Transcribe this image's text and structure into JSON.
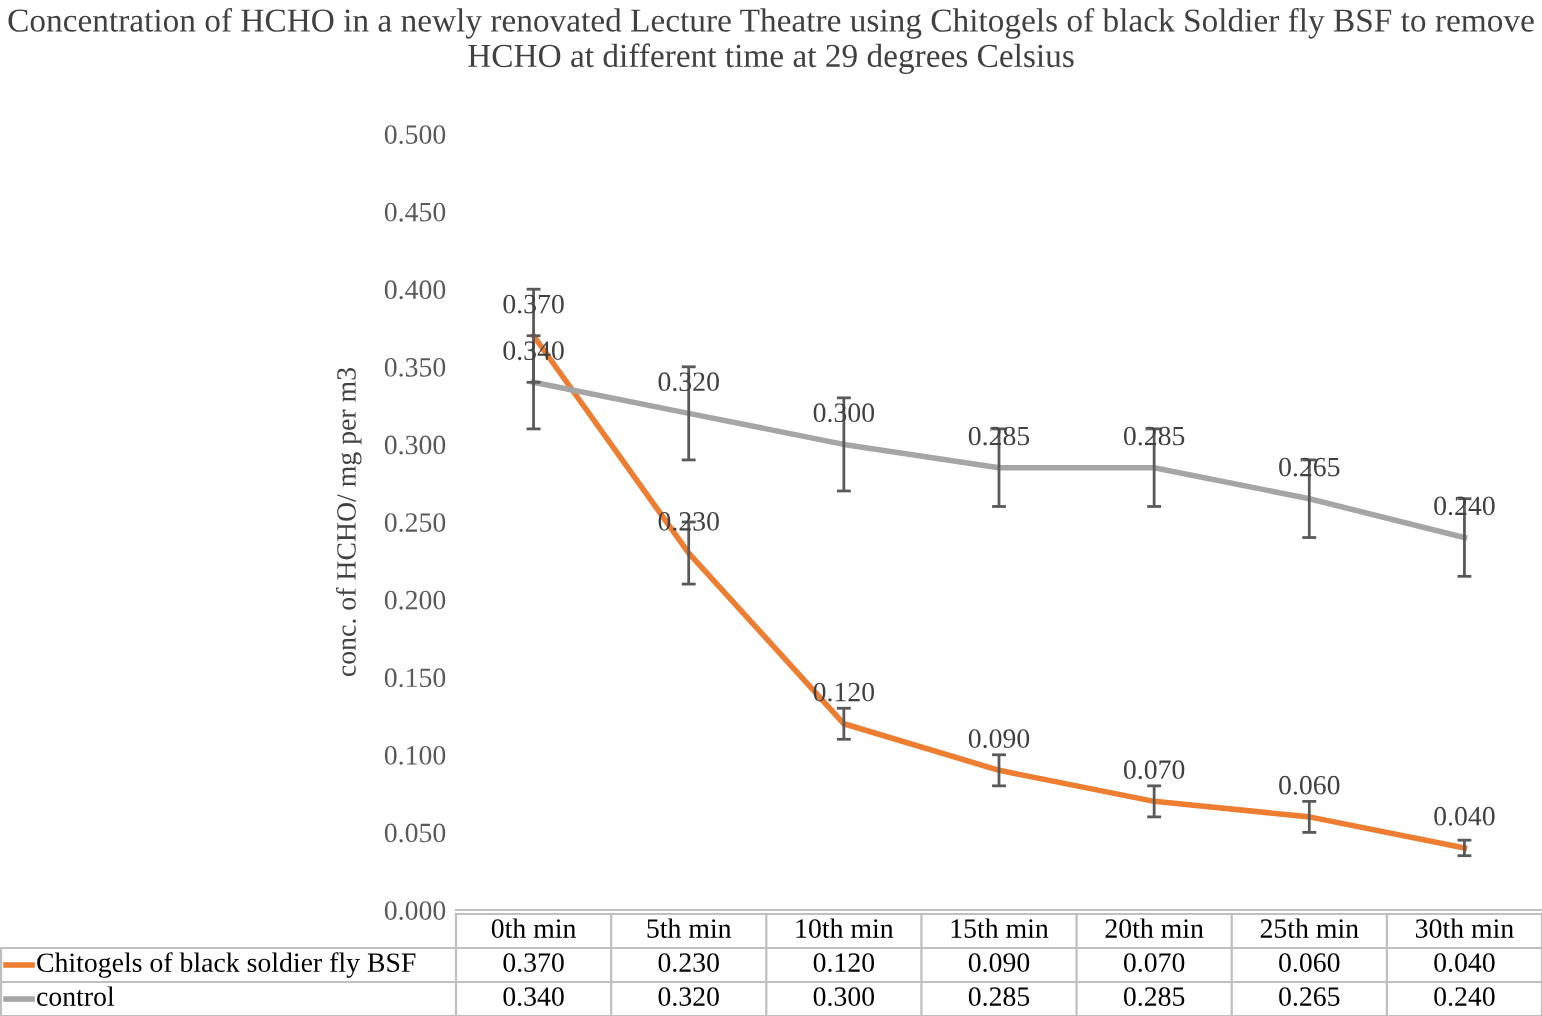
{
  "chart_data": {
    "type": "line",
    "title": "Concentration of HCHO in a newly renovated Lecture Theatre using Chitogels of black Soldier fly BSF to remove HCHO at different time at 29 degrees Celsius",
    "ylabel": "conc. of HCHO/ mg per m3",
    "categories": [
      "0th min",
      "5th min",
      "10th min",
      "15th min",
      "20th min",
      "25th min",
      "30th min"
    ],
    "series": [
      {
        "name": "Chitogels of black soldier fly BSF",
        "color": "#ed7d31",
        "values": [
          0.37,
          0.23,
          0.12,
          0.09,
          0.07,
          0.06,
          0.04
        ],
        "errors": [
          0.03,
          0.02,
          0.01,
          0.01,
          0.01,
          0.01,
          0.005
        ],
        "value_labels": [
          "0.370",
          "0.230",
          "0.120",
          "0.090",
          "0.070",
          "0.060",
          "0.040"
        ]
      },
      {
        "name": "control",
        "color": "#a5a5a5",
        "values": [
          0.34,
          0.32,
          0.3,
          0.285,
          0.285,
          0.265,
          0.24
        ],
        "errors": [
          0.03,
          0.03,
          0.03,
          0.025,
          0.025,
          0.025,
          0.025
        ],
        "value_labels": [
          "0.340",
          "0.320",
          "0.300",
          "0.285",
          "0.285",
          "0.265",
          "0.240"
        ]
      }
    ],
    "ylim": [
      0,
      0.5
    ],
    "yticks": [
      {
        "value": 0,
        "label": "0.000"
      },
      {
        "value": 0.05,
        "label": "0.050"
      },
      {
        "value": 0.1,
        "label": "0.100"
      },
      {
        "value": 0.15,
        "label": "0.150"
      },
      {
        "value": 0.2,
        "label": "0.200"
      },
      {
        "value": 0.25,
        "label": "0.250"
      },
      {
        "value": 0.3,
        "label": "0.300"
      },
      {
        "value": 0.35,
        "label": "0.350"
      },
      {
        "value": 0.4,
        "label": "0.400"
      },
      {
        "value": 0.45,
        "label": "0.450"
      },
      {
        "value": 0.5,
        "label": "0.500"
      }
    ],
    "legend": "bottom",
    "grid": false,
    "marker": "none",
    "line_style": "solid"
  }
}
